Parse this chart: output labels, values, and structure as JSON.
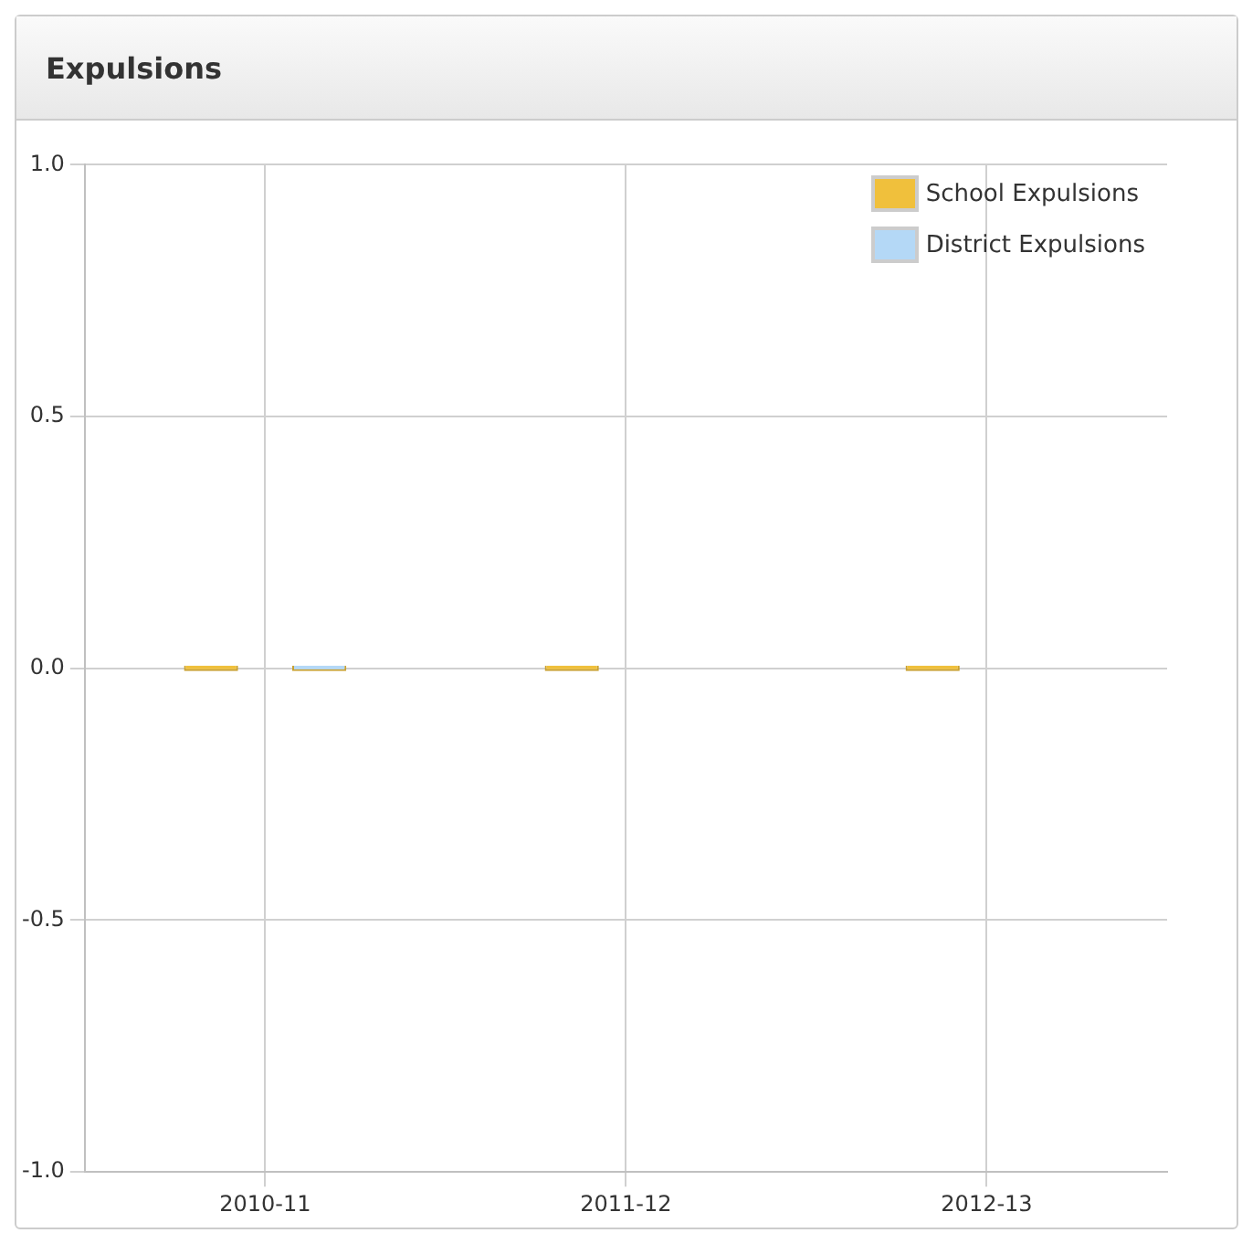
{
  "chart_data": {
    "type": "bar",
    "title": "Expulsions",
    "categories": [
      "2010-11",
      "2011-12",
      "2012-13"
    ],
    "series": [
      {
        "name": "School Expulsions",
        "color": "#f0c03c",
        "values": [
          0,
          0,
          0
        ]
      },
      {
        "name": "District Expulsions",
        "color": "#b4d8f6",
        "values": [
          0,
          null,
          null
        ]
      }
    ],
    "ylim": [
      -1,
      1
    ],
    "yticks": [
      {
        "value": -1,
        "label": "-1.0"
      },
      {
        "value": -0.5,
        "label": "-0.5"
      },
      {
        "value": 0,
        "label": "0.0"
      },
      {
        "value": 0.5,
        "label": "0.5"
      },
      {
        "value": 1,
        "label": "1.0"
      }
    ],
    "grid": true,
    "legend": "top right"
  }
}
